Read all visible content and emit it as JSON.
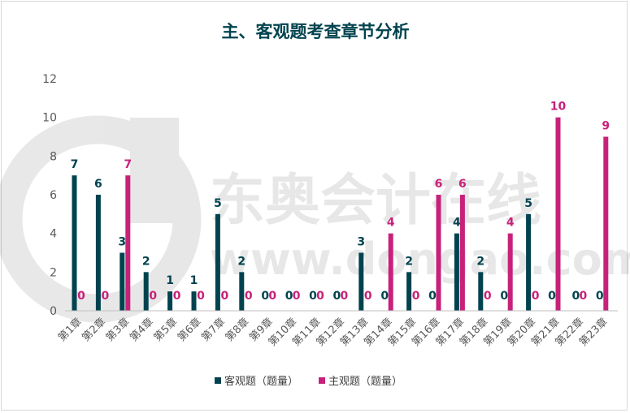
{
  "chart_data": {
    "type": "bar",
    "title": "主、客观题考查章节分析",
    "xlabel": "",
    "ylabel": "",
    "ylim": [
      0,
      12
    ],
    "yticks": [
      0,
      2,
      4,
      6,
      8,
      10,
      12
    ],
    "grid": false,
    "legend_position": "bottom",
    "categories": [
      "第1章",
      "第2章",
      "第3章",
      "第4章",
      "第5章",
      "第6章",
      "第7章",
      "第8章",
      "第9章",
      "第10章",
      "第11章",
      "第12章",
      "第13章",
      "第14章",
      "第15章",
      "第16章",
      "第17章",
      "第18章",
      "第19章",
      "第20章",
      "第21章",
      "第22章",
      "第23章"
    ],
    "series": [
      {
        "name": "客观题（题量）",
        "color": "#00434f",
        "values": [
          7,
          6,
          3,
          2,
          1,
          1,
          5,
          2,
          0,
          0,
          0,
          0,
          3,
          0,
          2,
          0,
          4,
          2,
          0,
          5,
          0,
          0,
          0
        ]
      },
      {
        "name": "主观题（题量）",
        "color": "#c8217a",
        "values": [
          0,
          0,
          7,
          0,
          0,
          0,
          0,
          0,
          0,
          0,
          0,
          0,
          0,
          4,
          0,
          6,
          6,
          0,
          4,
          0,
          10,
          0,
          9
        ]
      }
    ],
    "data_labels": true
  },
  "watermark": {
    "brand": "东奥会计在线",
    "url": "www.dongao.com"
  },
  "colors": {
    "title": "#00434f",
    "axis_text": "#595959",
    "axis_line": "#bfbfbf"
  }
}
